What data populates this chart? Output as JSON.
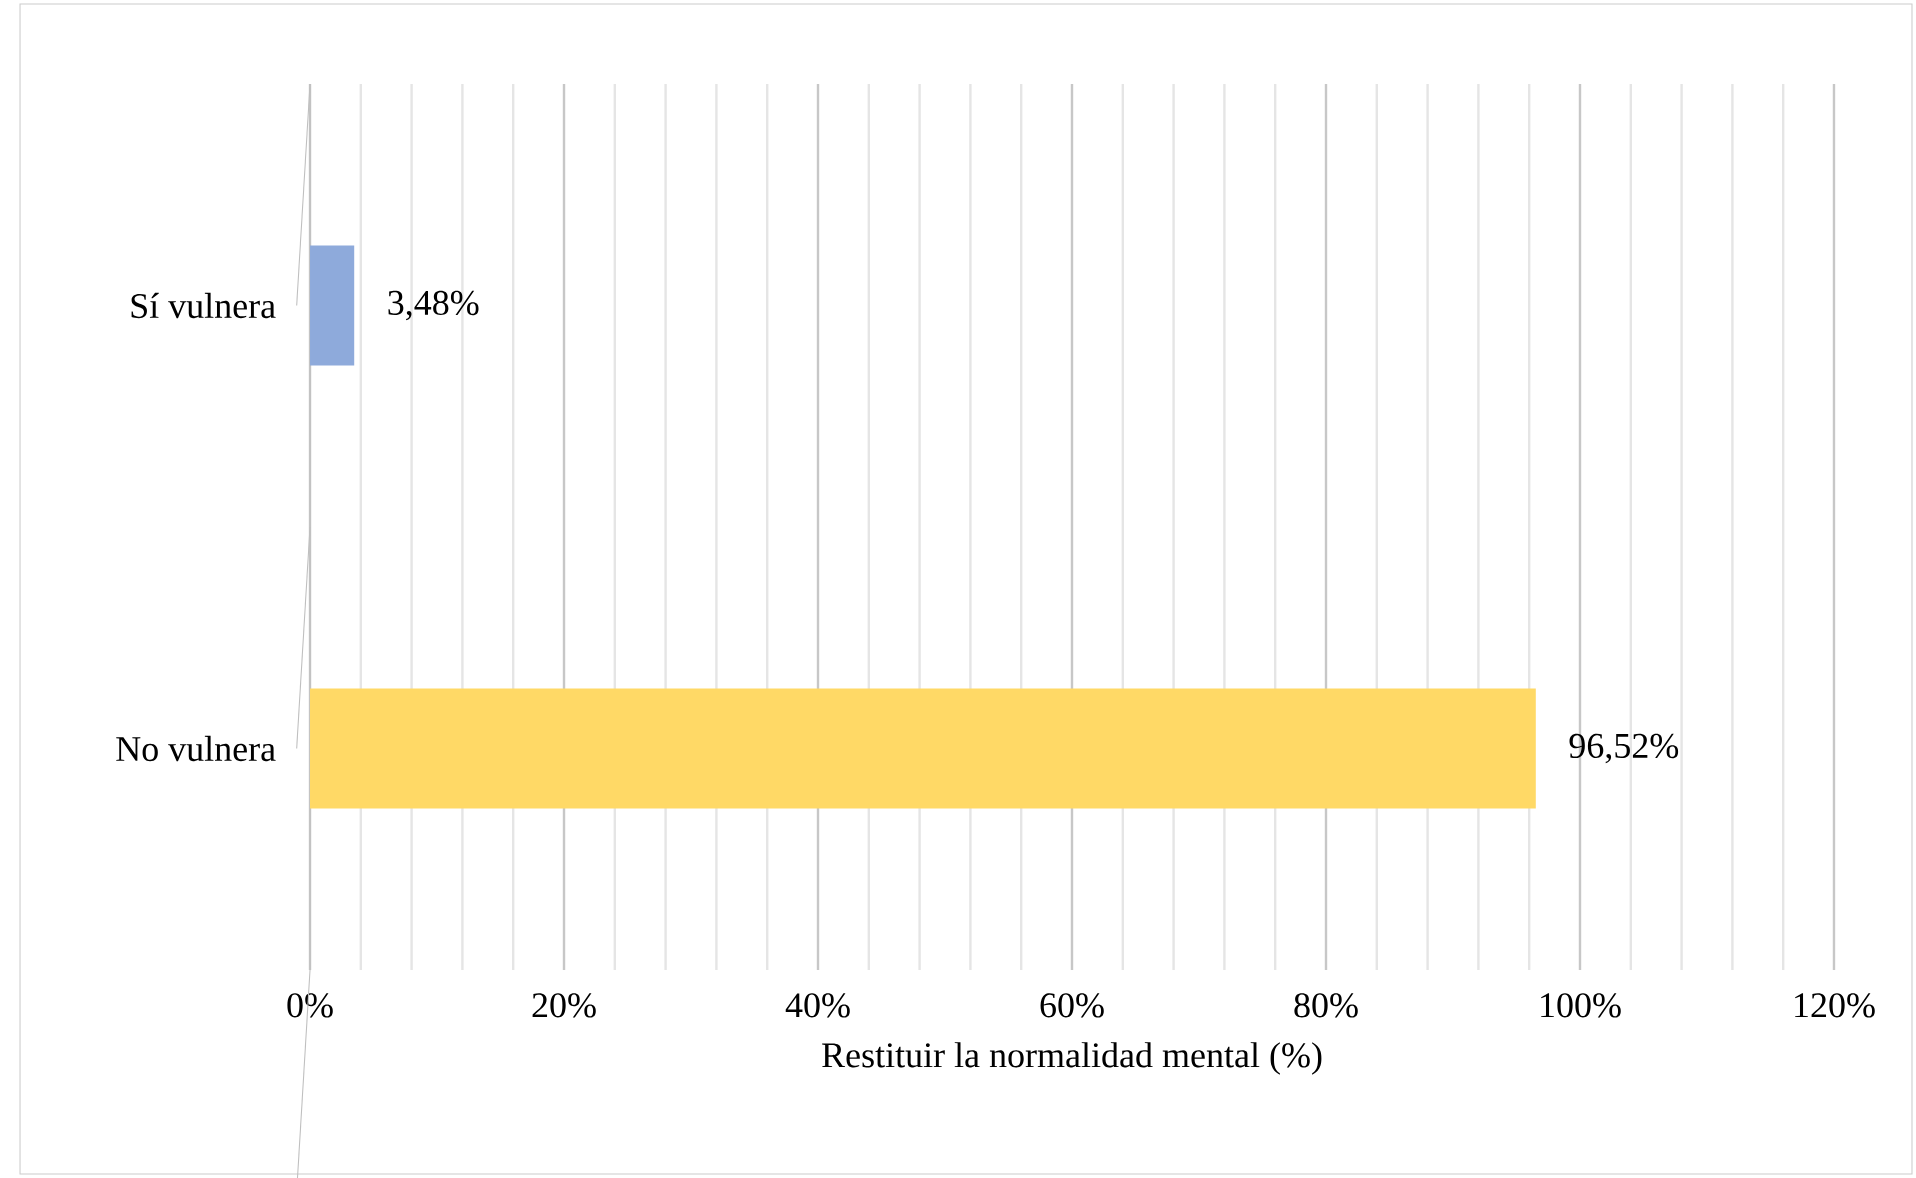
{
  "chart_data": {
    "type": "bar",
    "orientation": "horizontal",
    "xlabel": "Restituir la normalidad mental (%)",
    "categories": [
      "Sí vulnera",
      "No vulnera"
    ],
    "values": [
      3.48,
      96.52
    ],
    "colors": [
      "#8eaadb",
      "#ffd966"
    ],
    "value_labels": [
      "3,48%",
      "96,52%"
    ],
    "xlim": [
      0,
      120
    ],
    "xticks": [
      {
        "value": 0,
        "label": "0%"
      },
      {
        "value": 4,
        "label": null
      },
      {
        "value": 8,
        "label": null
      },
      {
        "value": 12,
        "label": null
      },
      {
        "value": 16,
        "label": null
      },
      {
        "value": 20,
        "label": "20%"
      },
      {
        "value": 24,
        "label": null
      },
      {
        "value": 28,
        "label": null
      },
      {
        "value": 32,
        "label": null
      },
      {
        "value": 36,
        "label": null
      },
      {
        "value": 40,
        "label": "40%"
      },
      {
        "value": 44,
        "label": null
      },
      {
        "value": 48,
        "label": null
      },
      {
        "value": 52,
        "label": null
      },
      {
        "value": 56,
        "label": null
      },
      {
        "value": 60,
        "label": "60%"
      },
      {
        "value": 64,
        "label": null
      },
      {
        "value": 68,
        "label": null
      },
      {
        "value": 72,
        "label": null
      },
      {
        "value": 76,
        "label": null
      },
      {
        "value": 80,
        "label": "80%"
      },
      {
        "value": 84,
        "label": null
      },
      {
        "value": 88,
        "label": null
      },
      {
        "value": 92,
        "label": null
      },
      {
        "value": 96,
        "label": null
      },
      {
        "value": 100,
        "label": "100%"
      },
      {
        "value": 104,
        "label": null
      },
      {
        "value": 108,
        "label": null
      },
      {
        "value": 112,
        "label": null
      },
      {
        "value": 116,
        "label": null
      },
      {
        "value": 120,
        "label": "120%"
      }
    ],
    "grid": "x"
  }
}
